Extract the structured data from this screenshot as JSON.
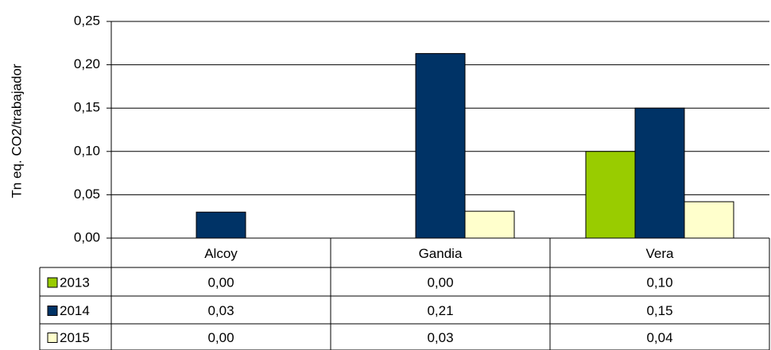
{
  "chart_data": {
    "type": "bar",
    "y_label": "Tn eq. CO2/trabajador",
    "categories": [
      "Alcoy",
      "Gandia",
      "Vera"
    ],
    "series": [
      {
        "name": "2013",
        "color": "#99cc00",
        "values": [
          0,
          0,
          0.1
        ],
        "value_labels": [
          "0,00",
          "0,00",
          "0,10"
        ]
      },
      {
        "name": "2014",
        "color": "#003366",
        "values": [
          0.03,
          0.213,
          0.15
        ],
        "value_labels": [
          "0,03",
          "0,21",
          "0,15"
        ]
      },
      {
        "name": "2015",
        "color": "#ffffcc",
        "values": [
          0,
          0.031,
          0.042
        ],
        "value_labels": [
          "0,00",
          "0,03",
          "0,04"
        ]
      }
    ],
    "ylim": [
      0,
      0.25
    ],
    "yticks": [
      {
        "value": 0,
        "label": "0,00"
      },
      {
        "value": 0.05,
        "label": "0,05"
      },
      {
        "value": 0.1,
        "label": "0,10"
      },
      {
        "value": 0.15,
        "label": "0,15"
      },
      {
        "value": 0.2,
        "label": "0,20"
      },
      {
        "value": 0.25,
        "label": "0,25"
      }
    ],
    "grid": true
  }
}
